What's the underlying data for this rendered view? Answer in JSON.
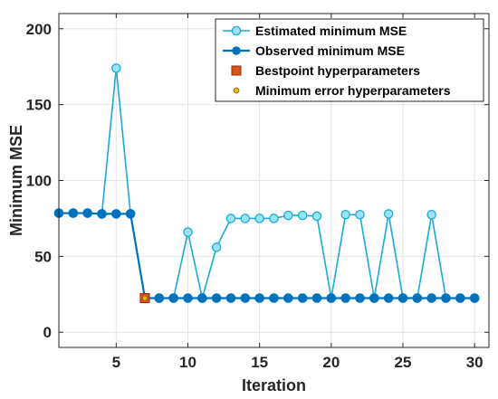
{
  "chart_data": {
    "type": "line",
    "title": "",
    "xlabel": "Iteration",
    "ylabel": "Minimum MSE",
    "xlim": [
      1,
      31
    ],
    "ylim": [
      -10,
      210
    ],
    "xticks": [
      5,
      10,
      15,
      20,
      25,
      30
    ],
    "yticks": [
      0,
      50,
      100,
      150,
      200
    ],
    "grid": true,
    "legend_position": "top-right",
    "x": [
      1,
      2,
      3,
      4,
      5,
      6,
      7,
      8,
      9,
      10,
      11,
      12,
      13,
      14,
      15,
      16,
      17,
      18,
      19,
      20,
      21,
      22,
      23,
      24,
      25,
      26,
      27,
      28,
      29,
      30
    ],
    "series": [
      {
        "name": "Estimated minimum MSE",
        "color": "#1aaad8",
        "marker": "circle-light",
        "values": [
          78.5,
          78.5,
          78.5,
          78,
          174,
          78,
          22.5,
          22.5,
          22.5,
          66,
          22.5,
          56,
          75,
          75,
          75,
          75,
          77,
          77,
          76.5,
          22.5,
          77.5,
          77.5,
          22.5,
          78,
          22.5,
          22.5,
          77.5,
          22.5,
          22.5,
          22.5
        ]
      },
      {
        "name": "Observed minimum MSE",
        "color": "#0072bd",
        "marker": "circle-filled",
        "values": [
          78.5,
          78.5,
          78.5,
          78,
          78,
          78,
          22.5,
          22.5,
          22.5,
          22.5,
          22.5,
          22.5,
          22.5,
          22.5,
          22.5,
          22.5,
          22.5,
          22.5,
          22.5,
          22.5,
          22.5,
          22.5,
          22.5,
          22.5,
          22.5,
          22.5,
          22.5,
          22.5,
          22.5,
          22.5
        ]
      }
    ],
    "points": [
      {
        "name": "Bestpoint hyperparameters",
        "color": "#d95319",
        "marker": "square",
        "x": 7,
        "y": 22.5
      },
      {
        "name": "Minimum error hyperparameters",
        "color": "#edb120",
        "marker": "circle-small",
        "x": 7,
        "y": 22.5
      }
    ],
    "legend": [
      "Estimated minimum MSE",
      "Observed minimum MSE",
      "Bestpoint hyperparameters",
      "Minimum error hyperparameters"
    ]
  }
}
